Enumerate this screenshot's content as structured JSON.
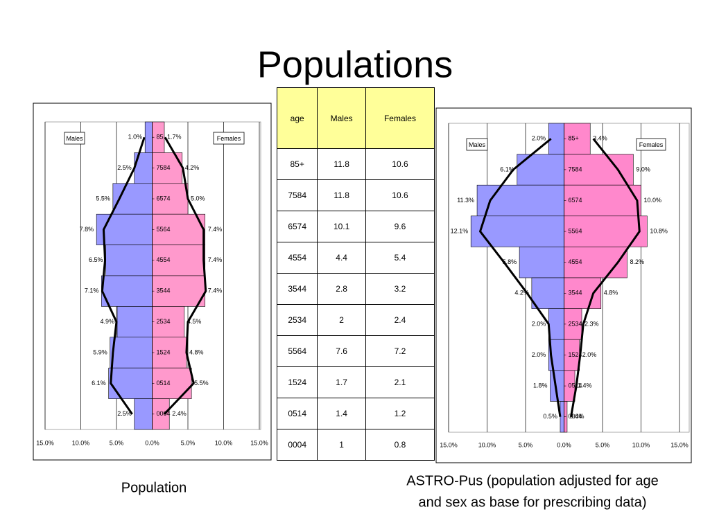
{
  "title": "Populations",
  "captions": [
    "Population",
    "ASTRO-Pus (population adjusted for age",
    "and sex as base for prescribing data)"
  ],
  "table": {
    "header": [
      "age",
      "Males",
      "Females"
    ],
    "rows": [
      [
        "85+",
        "11.8",
        "10.6"
      ],
      [
        "7584",
        "11.8",
        "10.6"
      ],
      [
        "6574",
        "10.1",
        "9.6"
      ],
      [
        "4554",
        "4.4",
        "5.4"
      ],
      [
        "3544",
        "2.8",
        "3.2"
      ],
      [
        "2534",
        "2",
        "2.4"
      ],
      [
        "5564",
        "7.6",
        "7.2"
      ],
      [
        "1524",
        "1.7",
        "2.1"
      ],
      [
        "0514",
        "1.4",
        "1.2"
      ],
      [
        "0004",
        "1",
        "0.8"
      ]
    ]
  },
  "chart_data": [
    {
      "type": "pyramid",
      "categories": [
        "85",
        "7584",
        "6574",
        "5564",
        "4554",
        "3544",
        "2534",
        "1524",
        "0514",
        "0004"
      ],
      "series": [
        {
          "name": "Males",
          "color": "#9999ff",
          "values": [
            1.0,
            2.5,
            5.5,
            7.8,
            6.5,
            7.1,
            4.9,
            5.9,
            6.1,
            2.5
          ],
          "value_labels": [
            "1.0%",
            "2.5%",
            "5.5%",
            "7.8%",
            "6.5%",
            "7.1%",
            "4.9%",
            "5.9%",
            "6.1%",
            "2.5%"
          ]
        },
        {
          "name": "Females",
          "color": "#ff99cc",
          "values": [
            1.7,
            4.2,
            5.0,
            7.4,
            7.4,
            7.4,
            4.5,
            4.8,
            5.5,
            2.4
          ],
          "value_labels": [
            "1.7%",
            "4.2%",
            "5.0%",
            "7.4%",
            "7.4%",
            "7.4%",
            "4.5%",
            "4.8%",
            "5.5%",
            "2.4%"
          ]
        }
      ],
      "outline_series": [
        {
          "color": "#000000",
          "values": [
            1.1,
            2.5,
            4.6,
            6.8,
            6.6,
            7.0,
            5.0,
            5.5,
            5.8,
            2.8
          ]
        },
        {
          "color": "#000000",
          "values": [
            1.8,
            4.3,
            5.0,
            7.2,
            7.2,
            7.5,
            5.0,
            4.8,
            5.8,
            1.7
          ]
        }
      ],
      "xlim": [
        -15,
        15
      ],
      "xticks": [
        {
          "value": -15,
          "label": "15.0%"
        },
        {
          "value": -10,
          "label": "10.0%"
        },
        {
          "value": -5,
          "label": "5.0%"
        },
        {
          "value": 0,
          "label": "0.0%"
        },
        {
          "value": 5,
          "label": "5.0%"
        },
        {
          "value": 10,
          "label": "10.0%"
        },
        {
          "value": 15,
          "label": "15.0%"
        }
      ],
      "grid": true
    },
    {
      "type": "pyramid",
      "categories": [
        "85+",
        "7584",
        "6574",
        "5564",
        "4554",
        "3544",
        "2534",
        "1524",
        "0514",
        "0004"
      ],
      "series": [
        {
          "name": "Males",
          "color": "#9999ff",
          "values": [
            2.0,
            6.1,
            11.3,
            12.1,
            5.8,
            4.2,
            2.0,
            2.0,
            1.8,
            0.5
          ],
          "value_labels": [
            "2.0%",
            "6.1%",
            "11.3%",
            "12.1%",
            "5.8%",
            "4.2%",
            "2.0%",
            "2.0%",
            "1.8%",
            "0.5%"
          ]
        },
        {
          "name": "Females",
          "color": "#ff88cc",
          "values": [
            3.4,
            9.0,
            10.0,
            10.8,
            8.2,
            4.8,
            2.3,
            2.0,
            1.4,
            0.4
          ],
          "value_labels": [
            "3.4%",
            "9.0%",
            "10.0%",
            "10.8%",
            "8.2%",
            "4.8%",
            "2.3%",
            "2.0%",
            "1.4%",
            "0.4%"
          ]
        }
      ],
      "outline_series": [
        {
          "color": "#000000",
          "values": [
            1.7,
            6.6,
            9.6,
            10.9,
            7.8,
            4.8,
            2.0,
            1.7,
            1.1,
            0.5
          ]
        },
        {
          "color": "#000000",
          "values": [
            3.8,
            7.0,
            9.5,
            9.8,
            7.0,
            3.8,
            2.5,
            2.1,
            1.6,
            0.9
          ]
        }
      ],
      "xlim": [
        -15,
        15
      ],
      "xticks": [
        {
          "value": -15,
          "label": "15.0%"
        },
        {
          "value": -10,
          "label": "10.0%"
        },
        {
          "value": -5,
          "label": "5.0%"
        },
        {
          "value": 0,
          "label": "0.0%"
        },
        {
          "value": 5,
          "label": "5.0%"
        },
        {
          "value": 10,
          "label": "10.0%"
        },
        {
          "value": 15,
          "label": "15.0%"
        }
      ],
      "grid": true
    }
  ]
}
